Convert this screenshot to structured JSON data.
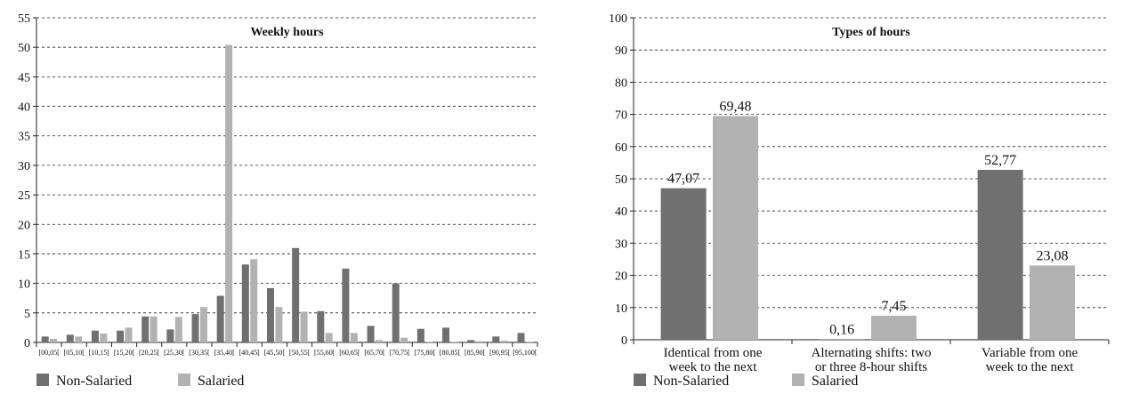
{
  "colors": {
    "non_salaried": "#707070",
    "salaried": "#b2b2b2"
  },
  "chart_data": [
    {
      "type": "bar",
      "title": "Weekly hours",
      "xlabel": "",
      "ylabel": "",
      "ylim": [
        0,
        55
      ],
      "yticks": [
        0,
        5,
        10,
        15,
        20,
        25,
        30,
        35,
        40,
        45,
        50,
        55
      ],
      "grid": true,
      "legend_position": "bottom-left",
      "categories": [
        "[00,05[",
        "[05,10[",
        "[10,15[",
        "[15,20[",
        "[20,25[",
        "[25,30[",
        "[30,35[",
        "[35,40[",
        "[40,45[",
        "[45,50[",
        "[50,55[",
        "[55,60[",
        "[60,65[",
        "[65,70[",
        "[70,75[",
        "[75,80[",
        "[80,85[",
        "[85,90[",
        "[90,95[",
        "[95,100["
      ],
      "series": [
        {
          "name": "Non-Salaried",
          "values": [
            1.0,
            1.3,
            2.0,
            2.0,
            4.4,
            2.2,
            4.8,
            7.9,
            13.2,
            9.2,
            16.0,
            5.3,
            12.5,
            2.8,
            10.0,
            2.3,
            2.5,
            0.4,
            1.0,
            1.6
          ]
        },
        {
          "name": "Salaried",
          "values": [
            0.6,
            1.0,
            1.5,
            2.5,
            4.4,
            4.3,
            6.0,
            50.4,
            14.1,
            6.0,
            5.2,
            1.6,
            1.6,
            0.4,
            0.8,
            0.1,
            0.1,
            0.2,
            0.3,
            0.1
          ]
        }
      ]
    },
    {
      "type": "bar",
      "title": "Types of hours",
      "xlabel": "",
      "ylabel": "",
      "ylim": [
        0,
        100
      ],
      "yticks": [
        0,
        10,
        20,
        30,
        40,
        50,
        60,
        70,
        80,
        90,
        100
      ],
      "grid": true,
      "legend_position": "bottom-left",
      "categories": [
        [
          "Identical from one",
          "week to the next"
        ],
        [
          "Alternating shifts: two",
          "or three 8-hour shifts"
        ],
        [
          "Variable from one",
          "week to the next"
        ]
      ],
      "series": [
        {
          "name": "Non-Salaried",
          "values": [
            47.07,
            0.16,
            52.77
          ],
          "labels": [
            "47,07",
            "0,16",
            "52,77"
          ]
        },
        {
          "name": "Salaried",
          "values": [
            69.48,
            7.45,
            23.08
          ],
          "labels": [
            "69,48",
            "7,45",
            "23,08"
          ]
        }
      ]
    }
  ]
}
